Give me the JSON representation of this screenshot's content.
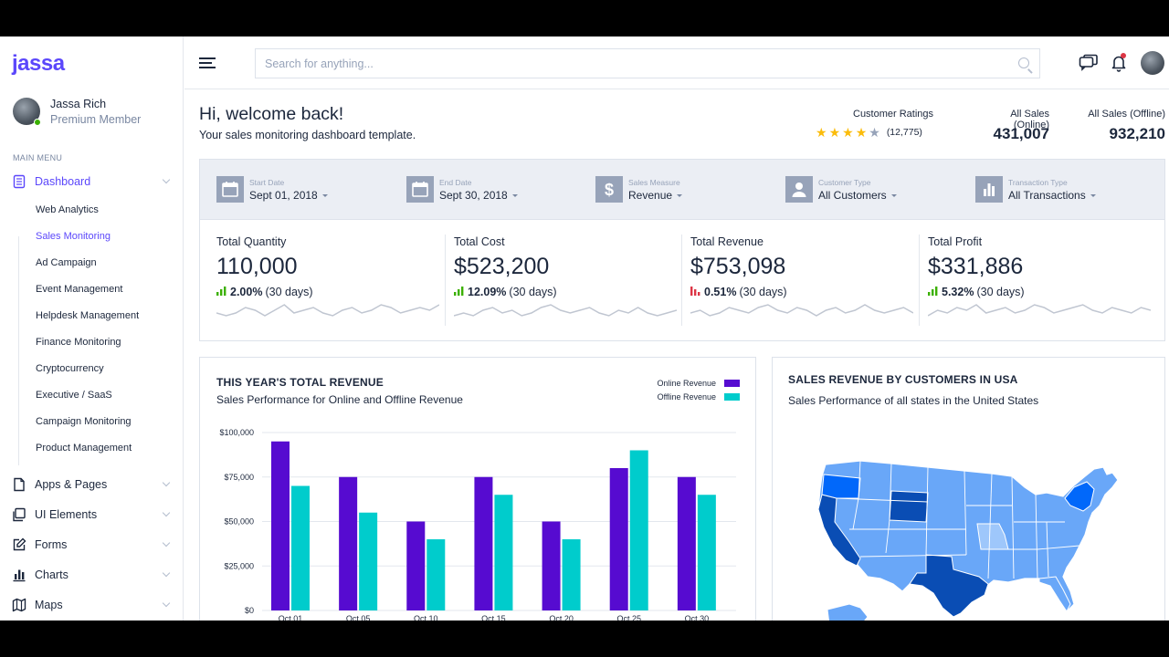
{
  "brand": {
    "name": "jassa",
    "color": "#5b47fb"
  },
  "user": {
    "name": "Jassa Rich",
    "role": "Premium Member",
    "status_color": "#3bb001"
  },
  "sidebar": {
    "menu_label": "MAIN MENU",
    "items": [
      {
        "label": "Dashboard",
        "icon": "dashboard-icon",
        "active": true
      },
      {
        "label": "Apps & Pages",
        "icon": "pages-icon"
      },
      {
        "label": "UI Elements",
        "icon": "layers-icon"
      },
      {
        "label": "Forms",
        "icon": "edit-icon"
      },
      {
        "label": "Charts",
        "icon": "bar-chart-icon"
      },
      {
        "label": "Maps",
        "icon": "map-icon"
      }
    ],
    "sub_items": [
      {
        "label": "Web Analytics"
      },
      {
        "label": "Sales Monitoring",
        "active": true
      },
      {
        "label": "Ad Campaign"
      },
      {
        "label": "Event Management"
      },
      {
        "label": "Helpdesk Management"
      },
      {
        "label": "Finance Monitoring"
      },
      {
        "label": "Cryptocurrency"
      },
      {
        "label": "Executive / SaaS"
      },
      {
        "label": "Campaign Monitoring"
      },
      {
        "label": "Product Management"
      }
    ]
  },
  "header": {
    "search_placeholder": "Search for anything...",
    "icons": [
      "menu-icon",
      "search-icon",
      "chat-icon",
      "bell-icon"
    ]
  },
  "welcome": {
    "title": "Hi, welcome back!",
    "subtitle": "Your sales monitoring dashboard template."
  },
  "ratings": {
    "label": "Customer Ratings",
    "stars": 4,
    "max_stars": 5,
    "count": "(12,775)",
    "star_color": "#fbbc0b"
  },
  "sales_online": {
    "label": "All Sales (Online)",
    "value": "431,007"
  },
  "sales_offline": {
    "label": "All Sales (Offline)",
    "value": "932,210"
  },
  "filters": [
    {
      "label": "Start Date",
      "value": "Sept 01, 2018",
      "icon": "calendar-icon"
    },
    {
      "label": "End Date",
      "value": "Sept 30, 2018",
      "icon": "calendar-icon"
    },
    {
      "label": "Sales Measure",
      "value": "Revenue",
      "icon": "dollar-icon"
    },
    {
      "label": "Customer Type",
      "value": "All Customers",
      "icon": "user-icon"
    },
    {
      "label": "Transaction Type",
      "value": "All Transactions",
      "icon": "bar-chart-icon"
    }
  ],
  "metrics": [
    {
      "label": "Total Quantity",
      "prefix": "",
      "value": "110,000",
      "change": "2.00%",
      "period": "(30 days)",
      "trend": "up",
      "spark": [
        6,
        5,
        6,
        8,
        7,
        5,
        7,
        9,
        6,
        7,
        8,
        6,
        5,
        7,
        8,
        6,
        7,
        9,
        8,
        6,
        7,
        8,
        7,
        9
      ]
    },
    {
      "label": "Total Cost",
      "prefix": "$",
      "value": "523,200",
      "change": "12.09%",
      "period": "(30 days)",
      "trend": "up",
      "spark": [
        5,
        6,
        5,
        7,
        8,
        6,
        7,
        5,
        6,
        8,
        9,
        7,
        6,
        7,
        8,
        6,
        5,
        7,
        6,
        8,
        6,
        5,
        6,
        7
      ]
    },
    {
      "label": "Total Revenue",
      "prefix": "$",
      "value": "753,098",
      "change": "0.51%",
      "period": "(30 days)",
      "trend": "down",
      "spark": [
        6,
        7,
        5,
        6,
        8,
        7,
        6,
        8,
        9,
        7,
        6,
        8,
        7,
        5,
        7,
        8,
        6,
        7,
        9,
        7,
        6,
        7,
        8,
        6
      ]
    },
    {
      "label": "Total Profit",
      "prefix": "$",
      "value": "331,886",
      "change": "5.32%",
      "period": "(30 days)",
      "trend": "up",
      "spark": [
        5,
        7,
        6,
        8,
        7,
        9,
        6,
        7,
        8,
        6,
        7,
        9,
        8,
        6,
        7,
        8,
        9,
        7,
        6,
        8,
        7,
        6,
        8,
        7
      ]
    }
  ],
  "trend_colors": {
    "up": "#3bb001",
    "down": "#dc3545"
  },
  "revenue_card": {
    "title": "THIS YEAR'S TOTAL REVENUE",
    "subtitle": "Sales Performance for Online and Offline Revenue"
  },
  "chart_data": {
    "type": "bar",
    "categories": [
      "Oct 01",
      "Oct 05",
      "Oct 10",
      "Oct 15",
      "Oct 20",
      "Oct 25",
      "Oct 30"
    ],
    "series": [
      {
        "name": "Online Revenue",
        "color": "#560bd0",
        "values": [
          95000,
          75000,
          50000,
          75000,
          50000,
          80000,
          75000
        ]
      },
      {
        "name": "Offline Revenue",
        "color": "#00cccc",
        "values": [
          70000,
          55000,
          40000,
          65000,
          40000,
          90000,
          65000
        ]
      }
    ],
    "y_ticks": [
      "$0",
      "$25,000",
      "$50,000",
      "$75,000",
      "$100,000"
    ],
    "ylim": [
      0,
      100000
    ],
    "grid": true,
    "legend_position": "top-right"
  },
  "map_card": {
    "title": "SALES REVENUE BY CUSTOMERS IN USA",
    "subtitle": "Sales Performance of all states in the United States",
    "colors": {
      "base": "#69a7f8",
      "dark": "#0168fa",
      "darker": "#0a4db4",
      "light": "#9ec7fb"
    }
  }
}
